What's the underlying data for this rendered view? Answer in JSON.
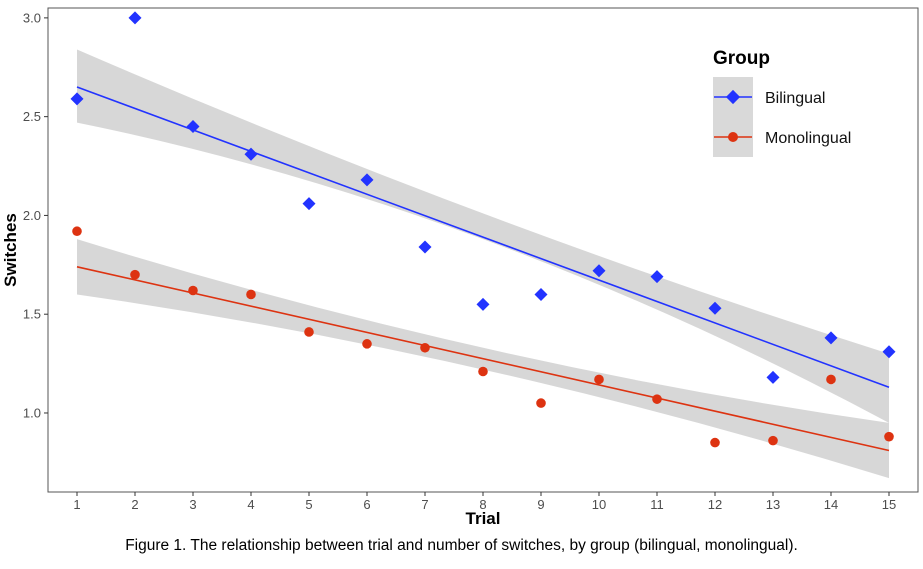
{
  "chart_data": {
    "type": "scatter",
    "xlabel": "Trial",
    "ylabel": "Switches",
    "x": [
      1,
      2,
      3,
      4,
      5,
      6,
      7,
      8,
      9,
      10,
      11,
      12,
      13,
      14,
      15
    ],
    "xlim": [
      0.5,
      15.5
    ],
    "ylim": [
      0.6,
      3.05
    ],
    "xticks": [
      1,
      2,
      3,
      4,
      5,
      6,
      7,
      8,
      9,
      10,
      11,
      12,
      13,
      14,
      15
    ],
    "yticks": [
      "1.0",
      "1.5",
      "2.0",
      "2.5",
      "3.0"
    ],
    "grid": false,
    "legend": {
      "title": "Group",
      "position": "top-right"
    },
    "series": [
      {
        "name": "Bilingual",
        "color": "#2233ff",
        "marker": "diamond",
        "values": [
          2.59,
          3.0,
          2.45,
          2.31,
          2.06,
          2.18,
          1.84,
          1.55,
          1.6,
          1.72,
          1.69,
          1.53,
          1.18,
          1.38,
          1.31
        ],
        "fit": {
          "start": 2.65,
          "end": 1.13
        },
        "band": {
          "start_lower": 2.47,
          "start_upper": 2.84,
          "mid_lower": 1.88,
          "mid_upper": 2.01,
          "end_lower": 0.95,
          "end_upper": 1.3
        }
      },
      {
        "name": "Monolingual",
        "color": "#dd3311",
        "marker": "circle",
        "values": [
          1.92,
          1.7,
          1.62,
          1.6,
          1.41,
          1.35,
          1.33,
          1.21,
          1.05,
          1.17,
          1.07,
          0.85,
          0.86,
          1.17,
          0.88
        ],
        "fit": {
          "start": 1.74,
          "end": 0.81
        },
        "band": {
          "start_lower": 1.6,
          "start_upper": 1.88,
          "mid_lower": 1.22,
          "mid_upper": 1.33,
          "end_lower": 0.67,
          "end_upper": 0.95
        }
      }
    ]
  },
  "caption": {
    "prefix": "Figure 1.",
    "text": " The relationship between trial and number of switches, by group (bilingual, monolingual)."
  }
}
